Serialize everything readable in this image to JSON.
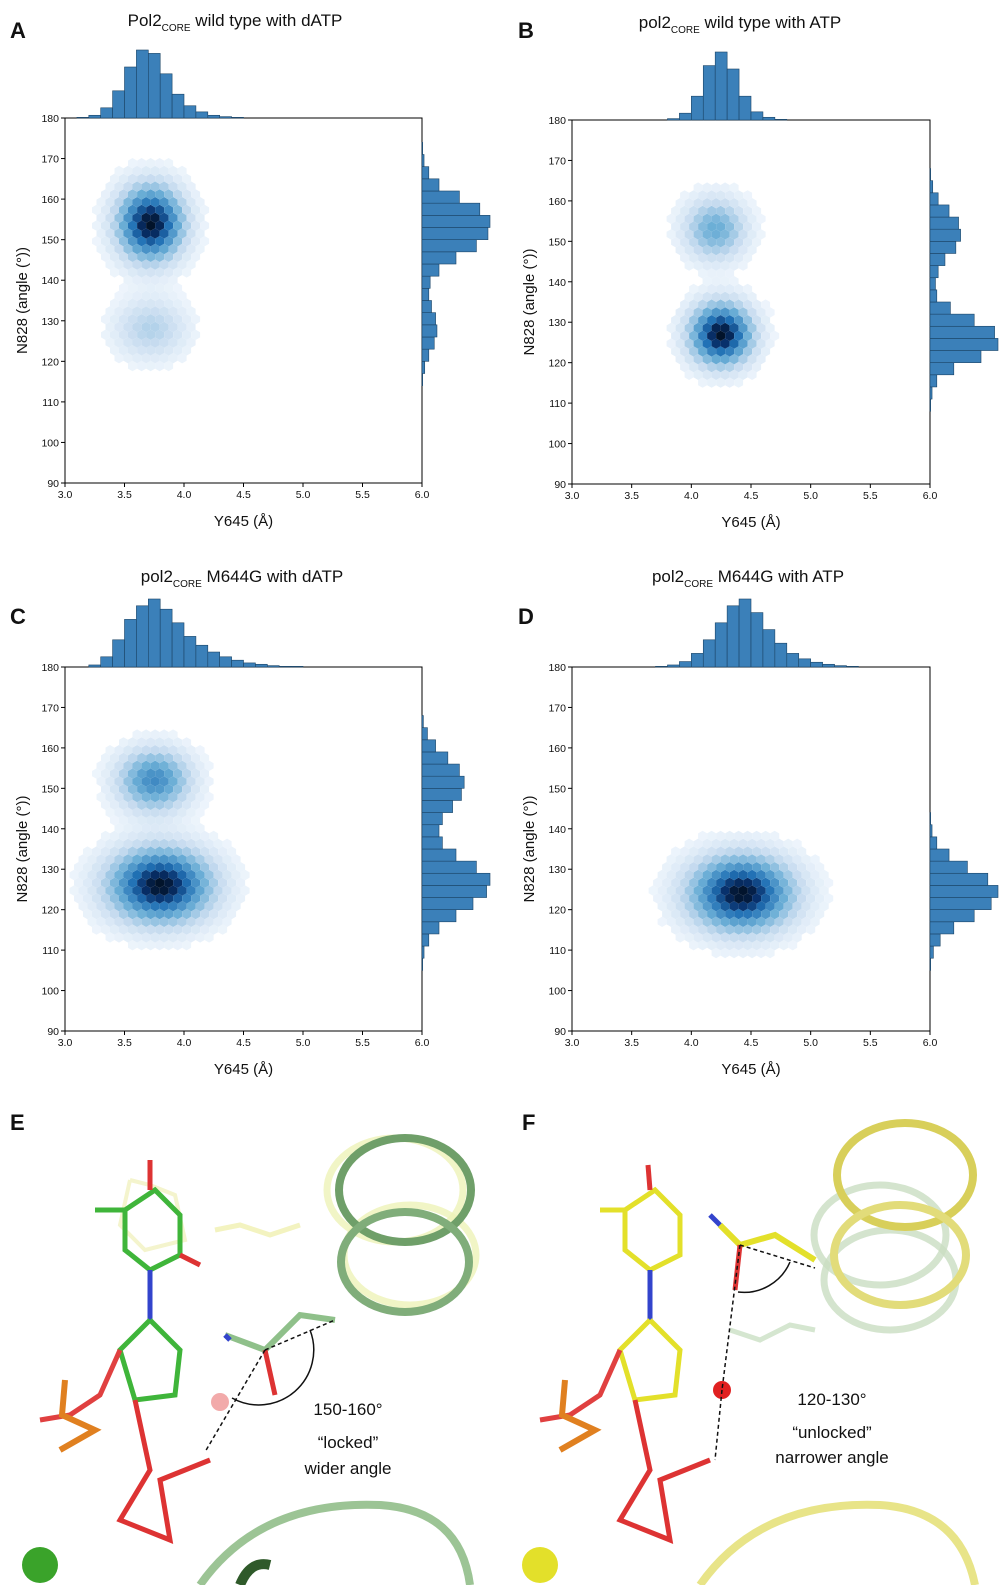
{
  "chart_data": [
    {
      "type": "hexbin",
      "panel_label": "A",
      "title": {
        "main": "Pol2",
        "sub": "CORE",
        "rest": " wild type with dATP"
      },
      "xlabel": "Y645  (Å)",
      "ylabel": "N828 (angle (°))",
      "xlim": [
        3.0,
        6.0
      ],
      "ylim": [
        90,
        180
      ],
      "xticks": [
        {
          "value": 3.0,
          "label": "3.0"
        },
        3.5,
        {
          "value": 4.0,
          "label": "4.0"
        },
        4.5,
        {
          "value": 5.0,
          "label": "5.0"
        },
        5.5,
        {
          "value": 6.0,
          "label": "6.0"
        }
      ],
      "yticks": [
        90,
        100,
        110,
        120,
        130,
        140,
        150,
        160,
        170,
        180
      ],
      "color": "#3b80b9",
      "clusters": [
        {
          "x": 3.72,
          "y": 154,
          "sx": 0.18,
          "sy": 6,
          "peak": 1
        },
        {
          "x": 3.72,
          "y": 128,
          "sx": 0.2,
          "sy": 5,
          "peak": 0.25
        }
      ],
      "x_hist": {
        "bins": [
          3.0,
          3.1,
          3.2,
          3.3,
          3.4,
          3.5,
          3.6,
          3.7,
          3.8,
          3.9,
          4.0,
          4.1,
          4.2,
          4.3,
          4.4,
          4.5,
          4.6,
          4.7,
          4.8,
          4.9,
          5.0,
          5.1,
          5.2,
          5.3,
          5.4,
          5.5,
          5.6,
          5.7,
          5.8,
          5.9,
          6.0
        ],
        "values": [
          0,
          1,
          4,
          15,
          40,
          75,
          100,
          95,
          65,
          35,
          18,
          9,
          4,
          2,
          1,
          0,
          0,
          0,
          0,
          0,
          0,
          0,
          0,
          0,
          0,
          0,
          0,
          0,
          0,
          0
        ]
      },
      "y_hist": {
        "bins": [
          90,
          93,
          96,
          99,
          102,
          105,
          108,
          111,
          114,
          117,
          120,
          123,
          126,
          129,
          132,
          135,
          138,
          141,
          144,
          147,
          150,
          153,
          156,
          159,
          162,
          165,
          168,
          171,
          174,
          177,
          180
        ],
        "values": [
          0,
          0,
          0,
          0,
          0,
          0,
          0,
          0,
          1,
          4,
          10,
          18,
          22,
          20,
          14,
          10,
          12,
          25,
          50,
          80,
          97,
          100,
          85,
          55,
          25,
          10,
          3,
          1,
          0,
          0
        ]
      }
    },
    {
      "type": "hexbin",
      "panel_label": "B",
      "title": {
        "main": "pol2",
        "sub": "CORE",
        "rest": "  wild type with ATP"
      },
      "xlabel": "Y645  (Å)",
      "ylabel": "N828 (angle (°))",
      "xlim": [
        3.0,
        6.0
      ],
      "ylim": [
        90,
        180
      ],
      "xticks": [
        {
          "value": 3.0,
          "label": "3.0"
        },
        3.5,
        {
          "value": 4.0,
          "label": "4.0"
        },
        4.5,
        {
          "value": 5.0,
          "label": "5.0"
        },
        5.5,
        {
          "value": 6.0,
          "label": "6.0"
        }
      ],
      "yticks": [
        90,
        100,
        110,
        120,
        130,
        140,
        150,
        160,
        170,
        180
      ],
      "color": "#3b80b9",
      "clusters": [
        {
          "x": 4.25,
          "y": 127,
          "sx": 0.17,
          "sy": 5,
          "peak": 1
        },
        {
          "x": 4.2,
          "y": 153,
          "sx": 0.17,
          "sy": 5,
          "peak": 0.45
        }
      ],
      "x_hist": {
        "bins": [
          3.0,
          3.1,
          3.2,
          3.3,
          3.4,
          3.5,
          3.6,
          3.7,
          3.8,
          3.9,
          4.0,
          4.1,
          4.2,
          4.3,
          4.4,
          4.5,
          4.6,
          4.7,
          4.8,
          4.9,
          5.0,
          5.1,
          5.2,
          5.3,
          5.4,
          5.5,
          5.6,
          5.7,
          5.8,
          5.9,
          6.0
        ],
        "values": [
          0,
          0,
          0,
          0,
          0,
          0,
          0,
          0,
          2,
          10,
          35,
          80,
          100,
          75,
          35,
          12,
          4,
          1,
          0,
          0,
          0,
          0,
          0,
          0,
          0,
          0,
          0,
          0,
          0,
          0
        ]
      },
      "y_hist": {
        "bins": [
          90,
          93,
          96,
          99,
          102,
          105,
          108,
          111,
          114,
          117,
          120,
          123,
          126,
          129,
          132,
          135,
          138,
          141,
          144,
          147,
          150,
          153,
          156,
          159,
          162,
          165,
          168,
          171,
          174,
          177,
          180
        ],
        "values": [
          0,
          0,
          0,
          0,
          0,
          0,
          1,
          3,
          10,
          35,
          75,
          100,
          95,
          65,
          30,
          10,
          8,
          12,
          22,
          38,
          45,
          42,
          28,
          12,
          4,
          1,
          0,
          0,
          0,
          0
        ]
      }
    },
    {
      "type": "hexbin",
      "panel_label": "C",
      "title": {
        "main": "pol2",
        "sub": "CORE",
        "rest": "  M644G with dATP"
      },
      "xlabel": "Y645  (Å)",
      "ylabel": "N828 (angle (°))",
      "xlim": [
        3.0,
        6.0
      ],
      "ylim": [
        90,
        180
      ],
      "xticks": [
        {
          "value": 3.0,
          "label": "3.0"
        },
        3.5,
        {
          "value": 4.0,
          "label": "4.0"
        },
        4.5,
        {
          "value": 5.0,
          "label": "5.0"
        },
        5.5,
        {
          "value": 6.0,
          "label": "6.0"
        }
      ],
      "yticks": [
        90,
        100,
        110,
        120,
        130,
        140,
        150,
        160,
        170,
        180
      ],
      "color": "#3b80b9",
      "clusters": [
        {
          "x": 3.8,
          "y": 126,
          "sx": 0.28,
          "sy": 6,
          "peak": 1
        },
        {
          "x": 3.75,
          "y": 152,
          "sx": 0.2,
          "sy": 5,
          "peak": 0.6
        }
      ],
      "x_hist": {
        "bins": [
          3.0,
          3.1,
          3.2,
          3.3,
          3.4,
          3.5,
          3.6,
          3.7,
          3.8,
          3.9,
          4.0,
          4.1,
          4.2,
          4.3,
          4.4,
          4.5,
          4.6,
          4.7,
          4.8,
          4.9,
          5.0,
          5.1,
          5.2,
          5.3,
          5.4,
          5.5,
          5.6,
          5.7,
          5.8,
          5.9,
          6.0
        ],
        "values": [
          0,
          0,
          3,
          15,
          40,
          70,
          90,
          100,
          85,
          65,
          45,
          32,
          22,
          15,
          10,
          6,
          4,
          2,
          1,
          1,
          0,
          0,
          0,
          0,
          0,
          0,
          0,
          0,
          0,
          0
        ]
      },
      "y_hist": {
        "bins": [
          90,
          93,
          96,
          99,
          102,
          105,
          108,
          111,
          114,
          117,
          120,
          123,
          126,
          129,
          132,
          135,
          138,
          141,
          144,
          147,
          150,
          153,
          156,
          159,
          162,
          165,
          168,
          171,
          174,
          177,
          180
        ],
        "values": [
          0,
          0,
          0,
          0,
          0,
          1,
          3,
          10,
          25,
          50,
          75,
          95,
          100,
          80,
          50,
          30,
          25,
          30,
          45,
          58,
          62,
          55,
          38,
          20,
          8,
          2,
          0,
          0,
          0,
          0
        ]
      }
    },
    {
      "type": "hexbin",
      "panel_label": "D",
      "title": {
        "main": "pol2",
        "sub": "CORE",
        "rest": "  M644G with ATP"
      },
      "xlabel": "Y645  (Å)",
      "ylabel": "N828 (angle (°))",
      "xlim": [
        3.0,
        6.0
      ],
      "ylim": [
        90,
        180
      ],
      "xticks": [
        {
          "value": 3.0,
          "label": "3.0"
        },
        3.5,
        {
          "value": 4.0,
          "label": "4.0"
        },
        4.5,
        {
          "value": 5.0,
          "label": "5.0"
        },
        5.5,
        {
          "value": 6.0,
          "label": "6.0"
        }
      ],
      "yticks": [
        90,
        100,
        110,
        120,
        130,
        140,
        150,
        160,
        170,
        180
      ],
      "color": "#3b80b9",
      "clusters": [
        {
          "x": 4.42,
          "y": 124,
          "sx": 0.28,
          "sy": 6,
          "peak": 1
        }
      ],
      "x_hist": {
        "bins": [
          3.0,
          3.1,
          3.2,
          3.3,
          3.4,
          3.5,
          3.6,
          3.7,
          3.8,
          3.9,
          4.0,
          4.1,
          4.2,
          4.3,
          4.4,
          4.5,
          4.6,
          4.7,
          4.8,
          4.9,
          5.0,
          5.1,
          5.2,
          5.3,
          5.4,
          5.5,
          5.6,
          5.7,
          5.8,
          5.9,
          6.0
        ],
        "values": [
          0,
          0,
          0,
          0,
          0,
          0,
          0,
          1,
          3,
          8,
          20,
          40,
          65,
          90,
          100,
          80,
          55,
          35,
          20,
          12,
          7,
          4,
          2,
          1,
          0,
          0,
          0,
          0,
          0,
          0
        ]
      },
      "y_hist": {
        "bins": [
          90,
          93,
          96,
          99,
          102,
          105,
          108,
          111,
          114,
          117,
          120,
          123,
          126,
          129,
          132,
          135,
          138,
          141,
          144,
          147,
          150,
          153,
          156,
          159,
          162,
          165,
          168,
          171,
          174,
          177,
          180
        ],
        "values": [
          0,
          0,
          0,
          0,
          0,
          1,
          5,
          15,
          35,
          65,
          90,
          100,
          85,
          55,
          28,
          10,
          3,
          1,
          0,
          0,
          0,
          0,
          0,
          0,
          0,
          0,
          0,
          0,
          0,
          0
        ]
      }
    }
  ],
  "structures": [
    {
      "panel_label": "E",
      "angle": "150-160°",
      "state": "“locked”",
      "description": "wider angle"
    },
    {
      "panel_label": "F",
      "angle": "120-130°",
      "state": "“unlocked”",
      "description": "narrower angle"
    }
  ]
}
